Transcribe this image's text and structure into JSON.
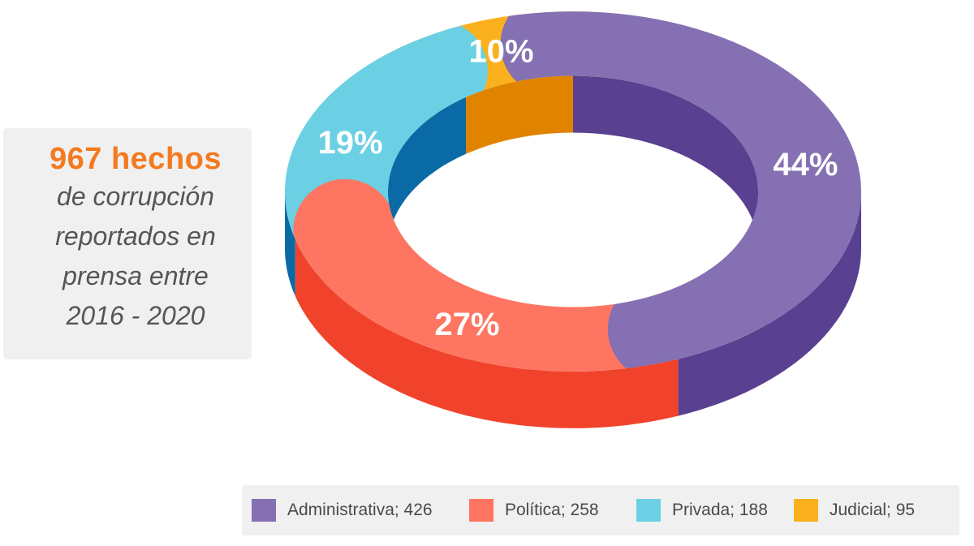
{
  "info": {
    "highlight": "967 hechos",
    "lines": [
      "de corrupción",
      "reportados en",
      "prensa entre",
      "2016 - 2020"
    ]
  },
  "chart_data": {
    "type": "pie",
    "variant": "3d-donut",
    "title": "",
    "total": 967,
    "slices": [
      {
        "name": "Administrativa",
        "value": 426,
        "percent_label": "44%",
        "color": "#8470b2",
        "side_color": "#5a4090"
      },
      {
        "name": "Política",
        "value": 258,
        "percent_label": "27%",
        "color": "#fe7562",
        "side_color": "#f1432c"
      },
      {
        "name": "Privada",
        "value": 188,
        "percent_label": "19%",
        "color": "#6bd0e4",
        "side_color": "#0a6aa6"
      },
      {
        "name": "Judicial",
        "value": 95,
        "percent_label": "10%",
        "color": "#fbb11d",
        "side_color": "#e08400"
      }
    ]
  },
  "legend": {
    "items": [
      {
        "label": "Administrativa; 426",
        "color": "#8470b2"
      },
      {
        "label": "Política; 258",
        "color": "#fe7562"
      },
      {
        "label": "Privada; 188",
        "color": "#6bd0e4"
      },
      {
        "label": "Judicial; 95",
        "color": "#fbb11d"
      }
    ]
  }
}
